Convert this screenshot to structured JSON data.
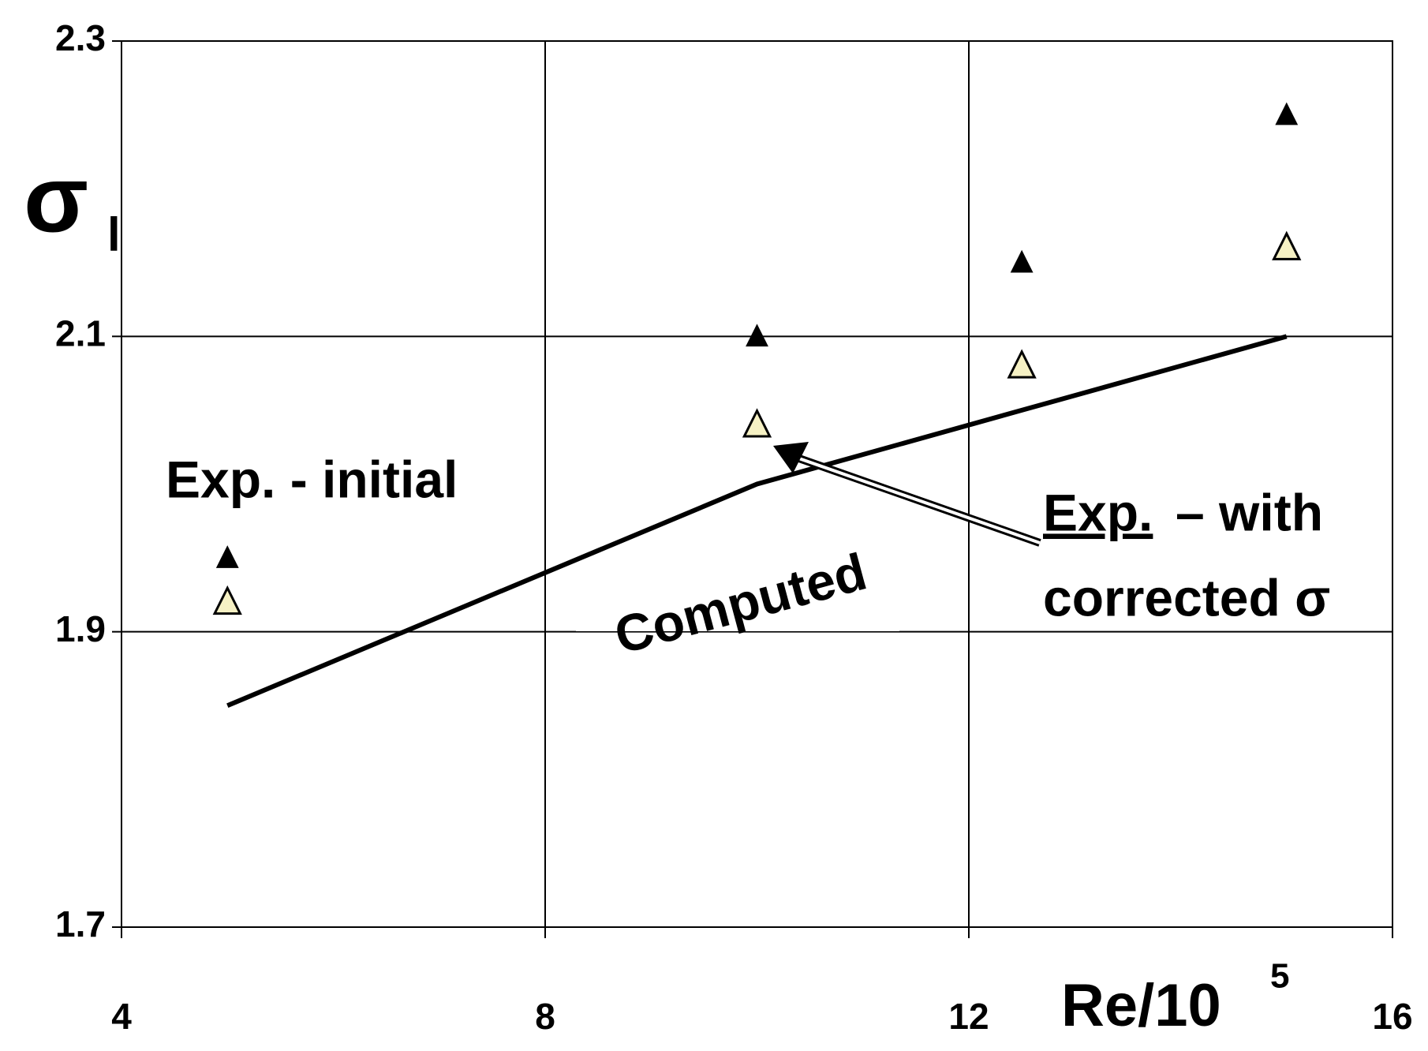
{
  "chart_data": {
    "type": "scatter",
    "ylabel": {
      "text": "σ",
      "sub": "l"
    },
    "xlabel": {
      "text": "Re/10",
      "sup": "5"
    },
    "xlim": [
      4,
      16
    ],
    "xticks": [
      4,
      8,
      12,
      16
    ],
    "ylim": [
      1.7,
      2.3
    ],
    "yticks": [
      1.7,
      1.9,
      2.1,
      2.3
    ],
    "grid": true,
    "series": [
      {
        "marker": "filled-triangle",
        "color": "#000000",
        "x": [
          5,
          10,
          12.5,
          15
        ],
        "values": [
          1.95,
          2.1,
          2.15,
          2.25
        ]
      },
      {
        "marker": "open-triangle",
        "color": "#f6f1c4",
        "x": [
          5,
          10,
          12.5,
          15
        ],
        "values": [
          1.92,
          2.04,
          2.08,
          2.16
        ]
      },
      {
        "marker": "line",
        "color": "#000000",
        "x": [
          5,
          10,
          12.5,
          15
        ],
        "values": [
          1.85,
          2.0,
          2.05,
          2.1
        ]
      }
    ],
    "annotations": {
      "initial": "Exp. - initial",
      "exp": "Exp.",
      "with": "– with",
      "corrected": "corrected σ",
      "computed": "Computed"
    }
  }
}
